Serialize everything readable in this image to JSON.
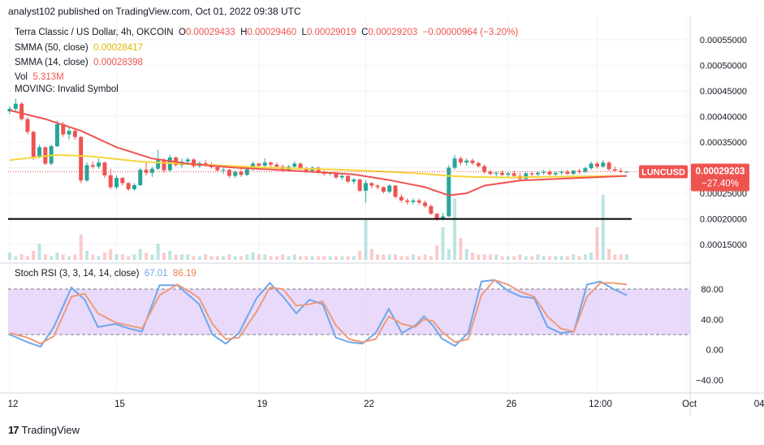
{
  "header": {
    "publisher_line": "analyst102 published on TradingView.com, Oct 01, 2022 09:38 UTC"
  },
  "legend": {
    "title": "Terra Classic / US Dollar, 4h, OKCOIN",
    "o_label": "O",
    "o_value": "0.00029433",
    "h_label": "H",
    "h_value": "0.00029460",
    "l_label": "L",
    "l_value": "0.00029019",
    "c_label": "C",
    "c_value": "0.00029203",
    "change": "−0.00000964 (−3.20%)",
    "sma50_label": "SMMA (50, close)",
    "sma50_value": "0.00028417",
    "sma14_label": "SMMA (14, close)",
    "sma14_value": "0.00028398",
    "vol_label": "Vol",
    "vol_value": "5.313M",
    "moving_label": "MOVING: Invalid Symbol"
  },
  "stoch_legend": {
    "label": "Stoch RSI (3, 3, 14, 14, close)",
    "k_value": "67.01",
    "d_value": "86.19"
  },
  "badge": {
    "symbol": "LUNCUSD",
    "price": "0.00029203",
    "pct": "−27.40%"
  },
  "footer": {
    "brand": "TradingView",
    "logo": "17"
  },
  "colors": {
    "up": "#26a69a",
    "down": "#ef5350",
    "sma50": "#f5d53b",
    "sma14": "#ef5350",
    "k_line": "#6fa6ea",
    "d_line": "#ef9a7a",
    "stoch_band": "#e1cdfa",
    "support": "#000000",
    "badge": "#ef5350"
  },
  "chart_data": {
    "type": "candlestick",
    "price_axis_ticks": [
      "0.00055000",
      "0.00050000",
      "0.00045000",
      "0.00040000",
      "0.00035000",
      "0.00030000",
      "0.00025000",
      "0.00020000",
      "0.00015000"
    ],
    "price_ylim": [
      0.00012,
      0.00058
    ],
    "stoch_axis_ticks": [
      "80.00",
      "40.00",
      "0.00",
      "−40.00"
    ],
    "stoch_ylim": [
      -55,
      110
    ],
    "stoch_band": [
      20,
      80
    ],
    "time_labels": [
      {
        "label": "12",
        "x": 0
      },
      {
        "label": "15",
        "x": 18
      },
      {
        "label": "19",
        "x": 42
      },
      {
        "label": "22",
        "x": 60
      },
      {
        "label": "26",
        "x": 84
      },
      {
        "label": "12:00",
        "x": 99
      },
      {
        "label": "Oct",
        "x": 114
      },
      {
        "label": "04:",
        "x": 126
      }
    ],
    "support_level": 0.0002,
    "last_price": 0.00029203,
    "candles": [
      [
        0.00041,
        0.00042,
        0.000405,
        0.000415
      ],
      [
        0.000415,
        0.000435,
        0.00041,
        0.000425
      ],
      [
        0.000425,
        0.000428,
        0.000392,
        0.000395
      ],
      [
        0.000395,
        0.000398,
        0.000365,
        0.00037
      ],
      [
        0.00037,
        0.000372,
        0.000315,
        0.00032
      ],
      [
        0.00032,
        0.000345,
        0.000318,
        0.00034
      ],
      [
        0.00034,
        0.000342,
        0.000305,
        0.000308
      ],
      [
        0.000308,
        0.000345,
        0.000305,
        0.000342
      ],
      [
        0.000342,
        0.000392,
        0.00034,
        0.000385
      ],
      [
        0.000385,
        0.00039,
        0.00036,
        0.000365
      ],
      [
        0.000365,
        0.000378,
        0.000355,
        0.000372
      ],
      [
        0.000372,
        0.000375,
        0.000355,
        0.00036
      ],
      [
        0.00036,
        0.000362,
        0.00027,
        0.000275
      ],
      [
        0.000275,
        0.00031,
        0.000272,
        0.000305
      ],
      [
        0.000305,
        0.000312,
        0.000298,
        0.000302
      ],
      [
        0.000302,
        0.000318,
        0.000298,
        0.00031
      ],
      [
        0.00031,
        0.000312,
        0.00028,
        0.000285
      ],
      [
        0.000285,
        0.000298,
        0.000258,
        0.000262
      ],
      [
        0.000262,
        0.000285,
        0.000258,
        0.00028
      ],
      [
        0.00028,
        0.000282,
        0.000265,
        0.00027
      ],
      [
        0.00027,
        0.000272,
        0.000255,
        0.000258
      ],
      [
        0.000258,
        0.00027,
        0.000255,
        0.000266
      ],
      [
        0.000266,
        0.0003,
        0.000264,
        0.000296
      ],
      [
        0.000296,
        0.00031,
        0.000285,
        0.00029
      ],
      [
        0.00029,
        0.000302,
        0.000282,
        0.000298
      ],
      [
        0.000298,
        0.000335,
        0.000295,
        0.000315
      ],
      [
        0.000315,
        0.000318,
        0.00029,
        0.000295
      ],
      [
        0.000295,
        0.000325,
        0.000292,
        0.00032
      ],
      [
        0.00032,
        0.000322,
        0.000302,
        0.000305
      ],
      [
        0.000305,
        0.000318,
        0.0003,
        0.000312
      ],
      [
        0.000312,
        0.00032,
        0.000305,
        0.000316
      ],
      [
        0.000316,
        0.000318,
        0.0003,
        0.000303
      ],
      [
        0.000303,
        0.000312,
        0.0003,
        0.000309
      ],
      [
        0.000309,
        0.000315,
        0.000302,
        0.000305
      ],
      [
        0.000305,
        0.00031,
        0.000298,
        0.000301
      ],
      [
        0.000301,
        0.000305,
        0.000292,
        0.000295
      ],
      [
        0.000295,
        0.0003,
        0.000288,
        0.000296
      ],
      [
        0.000296,
        0.000298,
        0.00028,
        0.000284
      ],
      [
        0.000284,
        0.000295,
        0.00028,
        0.000292
      ],
      [
        0.000292,
        0.000298,
        0.000282,
        0.000286
      ],
      [
        0.000286,
        0.0003,
        0.000284,
        0.000297
      ],
      [
        0.000297,
        0.000312,
        0.000294,
        0.000308
      ],
      [
        0.000308,
        0.00031,
        0.0003,
        0.000304
      ],
      [
        0.000304,
        0.000318,
        0.0003,
        0.00031
      ],
      [
        0.00031,
        0.000312,
        0.0003,
        0.000306
      ],
      [
        0.000306,
        0.00031,
        0.000298,
        0.000302
      ],
      [
        0.000302,
        0.000306,
        0.000292,
        0.000296
      ],
      [
        0.000296,
        0.000305,
        0.000292,
        0.000302
      ],
      [
        0.000302,
        0.000312,
        0.000298,
        0.000308
      ],
      [
        0.000308,
        0.00031,
        0.000296,
        0.000299
      ],
      [
        0.000299,
        0.000302,
        0.00029,
        0.000294
      ],
      [
        0.000294,
        0.000303,
        0.00029,
        0.0003
      ],
      [
        0.0003,
        0.000302,
        0.000288,
        0.000291
      ],
      [
        0.000291,
        0.000295,
        0.000284,
        0.000288
      ],
      [
        0.000288,
        0.000293,
        0.000285,
        0.00029
      ],
      [
        0.00029,
        0.000292,
        0.000278,
        0.000281
      ],
      [
        0.000281,
        0.000286,
        0.000276,
        0.000284
      ],
      [
        0.000284,
        0.000285,
        0.00027,
        0.000273
      ],
      [
        0.000273,
        0.00028,
        0.000268,
        0.000277
      ],
      [
        0.000277,
        0.000279,
        0.000252,
        0.000255
      ],
      [
        0.000255,
        0.000276,
        0.000232,
        0.00027
      ],
      [
        0.00027,
        0.000272,
        0.00026,
        0.000265
      ],
      [
        0.000265,
        0.000268,
        0.000258,
        0.000262
      ],
      [
        0.000262,
        0.000263,
        0.00025,
        0.000253
      ],
      [
        0.000253,
        0.000268,
        0.00025,
        0.000265
      ],
      [
        0.000265,
        0.000266,
        0.00024,
        0.000243
      ],
      [
        0.000243,
        0.000248,
        0.000232,
        0.000236
      ],
      [
        0.000236,
        0.00024,
        0.000228,
        0.000233
      ],
      [
        0.000233,
        0.00024,
        0.000228,
        0.000236
      ],
      [
        0.000236,
        0.00024,
        0.000228,
        0.000232
      ],
      [
        0.000232,
        0.000236,
        0.000222,
        0.000225
      ],
      [
        0.000225,
        0.000228,
        0.000208,
        0.00021
      ],
      [
        0.00021,
        0.000212,
        0.000196,
        0.000199
      ],
      [
        0.000199,
        0.000212,
        0.000197,
        0.000205
      ],
      [
        0.000205,
        0.000305,
        0.000204,
        0.0003
      ],
      [
        0.0003,
        0.000325,
        0.000296,
        0.000318
      ],
      [
        0.000318,
        0.000322,
        0.000305,
        0.00031
      ],
      [
        0.00031,
        0.000318,
        0.000304,
        0.000314
      ],
      [
        0.000314,
        0.000318,
        0.000306,
        0.000309
      ],
      [
        0.000309,
        0.000312,
        0.0003,
        0.000303
      ],
      [
        0.000303,
        0.000306,
        0.000288,
        0.000292
      ],
      [
        0.000292,
        0.000296,
        0.000285,
        0.000288
      ],
      [
        0.000288,
        0.000292,
        0.000283,
        0.00029
      ],
      [
        0.00029,
        0.000295,
        0.000284,
        0.000286
      ],
      [
        0.000286,
        0.000292,
        0.000282,
        0.000289
      ],
      [
        0.000289,
        0.000294,
        0.000282,
        0.000284
      ],
      [
        0.000284,
        0.00029,
        0.000275,
        0.000278
      ],
      [
        0.000278,
        0.000292,
        0.000276,
        0.000289
      ],
      [
        0.000289,
        0.000293,
        0.000283,
        0.000287
      ],
      [
        0.000287,
        0.000292,
        0.000282,
        0.00029
      ],
      [
        0.00029,
        0.000296,
        0.000286,
        0.000292
      ],
      [
        0.000292,
        0.000296,
        0.000284,
        0.000287
      ],
      [
        0.000287,
        0.000292,
        0.000284,
        0.00029
      ],
      [
        0.00029,
        0.000295,
        0.000286,
        0.000292
      ],
      [
        0.000292,
        0.000296,
        0.000286,
        0.000288
      ],
      [
        0.000288,
        0.000296,
        0.000286,
        0.000294
      ],
      [
        0.000294,
        0.000298,
        0.000288,
        0.000292
      ],
      [
        0.000292,
        0.000302,
        0.00029,
        0.000299
      ],
      [
        0.000299,
        0.000312,
        0.000296,
        0.000308
      ],
      [
        0.000308,
        0.000312,
        0.000298,
        0.000302
      ],
      [
        0.000302,
        0.000315,
        0.0003,
        0.00031
      ],
      [
        0.00031,
        0.000313,
        0.000294,
        0.000297
      ],
      [
        0.000297,
        0.000302,
        0.000292,
        0.000294
      ],
      [
        0.000294,
        0.0003,
        0.00029,
        0.000292
      ],
      [
        0.000292,
        0.000294,
        0.00029,
        0.000292
      ]
    ],
    "sma50": [
      [
        0,
        0.000315
      ],
      [
        8,
        0.000325
      ],
      [
        14,
        0.000322
      ],
      [
        22,
        0.000312
      ],
      [
        32,
        0.000306
      ],
      [
        44,
        0.0003
      ],
      [
        56,
        0.000296
      ],
      [
        64,
        0.000292
      ],
      [
        70,
        0.000288
      ],
      [
        74,
        0.000284
      ],
      [
        78,
        0.000282
      ],
      [
        84,
        0.000281
      ],
      [
        90,
        0.000282
      ],
      [
        96,
        0.000283
      ],
      [
        104,
        0.000284
      ]
    ],
    "sma14": [
      [
        0,
        0.000412
      ],
      [
        6,
        0.000395
      ],
      [
        12,
        0.000372
      ],
      [
        18,
        0.00034
      ],
      [
        24,
        0.000318
      ],
      [
        30,
        0.000308
      ],
      [
        38,
        0.0003
      ],
      [
        48,
        0.000294
      ],
      [
        58,
        0.000287
      ],
      [
        64,
        0.000276
      ],
      [
        70,
        0.000262
      ],
      [
        74,
        0.000246
      ],
      [
        77,
        0.00025
      ],
      [
        80,
        0.000265
      ],
      [
        86,
        0.000275
      ],
      [
        94,
        0.000279
      ],
      [
        104,
        0.000284
      ]
    ],
    "volume": [
      4,
      2,
      3,
      2,
      5,
      9,
      3,
      2,
      4,
      3,
      2,
      3,
      14,
      5,
      3,
      2,
      4,
      6,
      3,
      3,
      2,
      3,
      6,
      4,
      3,
      9,
      4,
      5,
      3,
      3,
      3,
      2,
      2,
      3,
      2,
      2,
      2,
      3,
      2,
      2,
      3,
      4,
      3,
      3,
      2,
      2,
      3,
      2,
      3,
      2,
      2,
      2,
      2,
      2,
      2,
      2,
      2,
      2,
      2,
      5,
      22,
      6,
      3,
      3,
      3,
      3,
      2,
      2,
      3,
      2,
      3,
      2,
      8,
      18,
      6,
      34,
      12,
      6,
      4,
      3,
      3,
      3,
      3,
      2,
      2,
      2,
      3,
      2,
      2,
      3,
      2,
      2,
      2,
      2,
      2,
      3,
      2,
      3,
      4,
      18,
      36,
      6,
      3,
      3,
      3
    ],
    "stoch_k": [
      [
        0,
        20
      ],
      [
        4,
        10
      ],
      [
        7,
        4
      ],
      [
        10,
        30
      ],
      [
        14,
        82
      ],
      [
        17,
        66
      ],
      [
        20,
        30
      ],
      [
        24,
        34
      ],
      [
        27,
        28
      ],
      [
        30,
        24
      ],
      [
        34,
        85
      ],
      [
        38,
        85
      ],
      [
        41,
        70
      ],
      [
        43,
        60
      ],
      [
        46,
        20
      ],
      [
        49,
        8
      ],
      [
        52,
        22
      ],
      [
        56,
        68
      ],
      [
        59,
        88
      ],
      [
        62,
        70
      ],
      [
        65,
        48
      ],
      [
        68,
        66
      ],
      [
        71,
        60
      ],
      [
        74,
        16
      ],
      [
        77,
        10
      ],
      [
        80,
        8
      ],
      [
        83,
        22
      ],
      [
        86,
        54
      ],
      [
        89,
        22
      ],
      [
        92,
        32
      ],
      [
        94,
        44
      ],
      [
        96,
        32
      ],
      [
        98,
        15
      ],
      [
        101,
        5
      ],
      [
        104,
        22
      ],
      [
        107,
        90
      ],
      [
        110,
        92
      ],
      [
        113,
        78
      ],
      [
        116,
        70
      ],
      [
        119,
        68
      ],
      [
        122,
        30
      ],
      [
        125,
        22
      ],
      [
        128,
        24
      ],
      [
        131,
        86
      ],
      [
        134,
        90
      ],
      [
        137,
        80
      ],
      [
        140,
        72
      ]
    ],
    "stoch_d": [
      [
        0,
        22
      ],
      [
        4,
        16
      ],
      [
        7,
        8
      ],
      [
        10,
        18
      ],
      [
        14,
        70
      ],
      [
        17,
        74
      ],
      [
        20,
        48
      ],
      [
        24,
        36
      ],
      [
        27,
        32
      ],
      [
        30,
        28
      ],
      [
        34,
        72
      ],
      [
        38,
        86
      ],
      [
        41,
        76
      ],
      [
        43,
        68
      ],
      [
        46,
        34
      ],
      [
        49,
        14
      ],
      [
        52,
        16
      ],
      [
        56,
        50
      ],
      [
        59,
        82
      ],
      [
        62,
        80
      ],
      [
        65,
        58
      ],
      [
        68,
        60
      ],
      [
        71,
        64
      ],
      [
        74,
        32
      ],
      [
        77,
        14
      ],
      [
        80,
        10
      ],
      [
        83,
        14
      ],
      [
        86,
        44
      ],
      [
        89,
        34
      ],
      [
        92,
        30
      ],
      [
        94,
        40
      ],
      [
        96,
        38
      ],
      [
        98,
        24
      ],
      [
        101,
        10
      ],
      [
        104,
        14
      ],
      [
        107,
        72
      ],
      [
        110,
        92
      ],
      [
        113,
        86
      ],
      [
        116,
        76
      ],
      [
        119,
        70
      ],
      [
        122,
        44
      ],
      [
        125,
        28
      ],
      [
        128,
        24
      ],
      [
        131,
        70
      ],
      [
        134,
        88
      ],
      [
        137,
        88
      ],
      [
        140,
        86
      ]
    ]
  }
}
